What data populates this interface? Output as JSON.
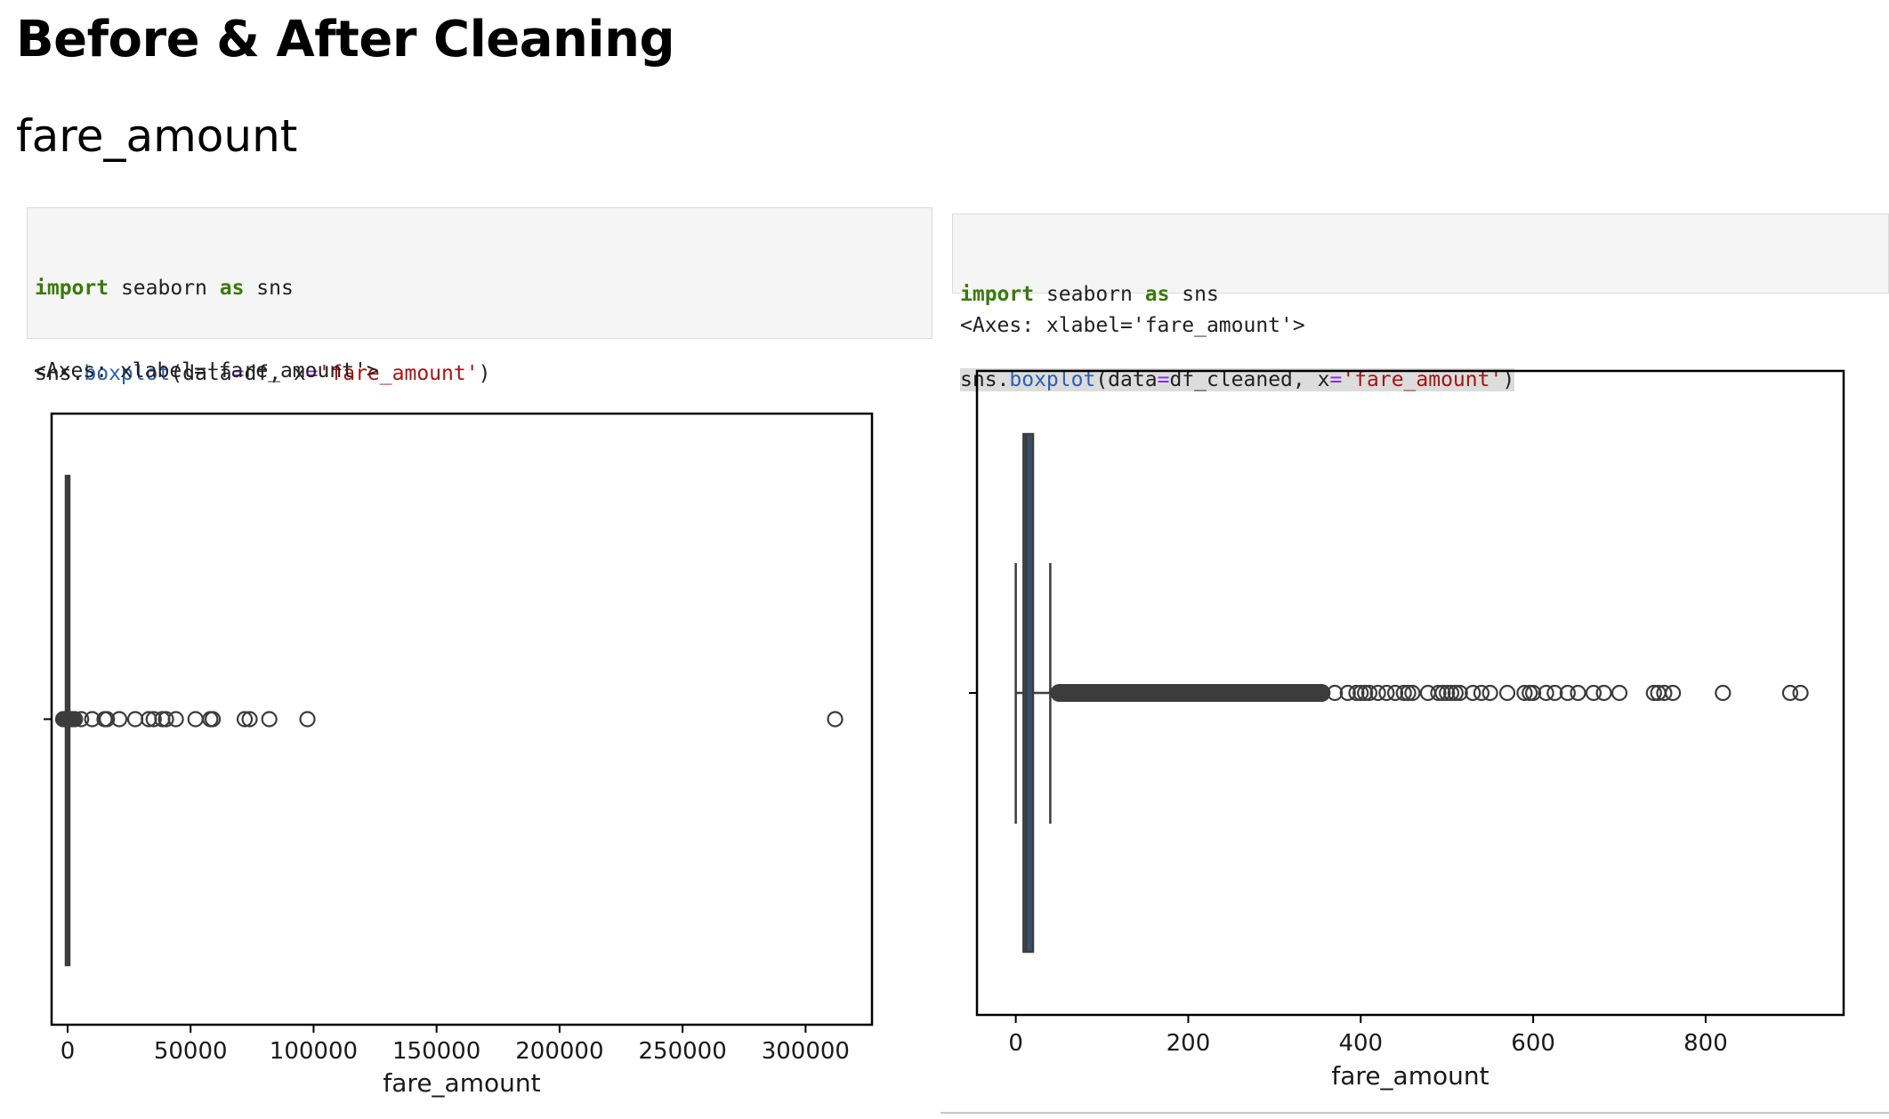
{
  "page": {
    "title": "Before & After Cleaning",
    "subtitle": "fare_amount"
  },
  "cells": [
    {
      "code": {
        "line1": {
          "kw1": "import",
          "mod": " seaborn ",
          "kw2": "as",
          "alias": " sns"
        },
        "line2": {
          "a": "sns.",
          "fn": "boxplot",
          "b": "(data",
          "eq1": "=",
          "c": "df, x",
          "eq2": "=",
          "str": "'fare_amount'",
          "d": ")"
        }
      },
      "output": "<Axes: xlabel='fare_amount'>"
    },
    {
      "code": {
        "line1": {
          "kw1": "import",
          "mod": " seaborn ",
          "kw2": "as",
          "alias": " sns"
        },
        "line2": {
          "a": "sns.",
          "fn": "boxplot",
          "b": "(data",
          "eq1": "=",
          "c": "df_cleaned, x",
          "eq2": "=",
          "str": "'fare_amount'",
          "d": ")"
        }
      },
      "output": "<Axes: xlabel='fare_amount'>"
    }
  ],
  "chart_data": [
    {
      "type": "box",
      "orientation": "horizontal",
      "xlabel": "fare_amount",
      "xlim": [
        -6500,
        327000
      ],
      "xticks": [
        0,
        50000,
        100000,
        150000,
        200000,
        250000,
        300000
      ],
      "xtick_labels": [
        "0",
        "50000",
        "100000",
        "150000",
        "200000",
        "250000",
        "300000"
      ],
      "box": {
        "q1": 6,
        "median": 9,
        "q3": 14,
        "whisker_low": -50,
        "whisker_high": 26
      },
      "outliers": [
        -1800,
        -1200,
        -600,
        -200,
        200,
        500,
        900,
        1500,
        2200,
        3000,
        5500,
        10000,
        15000,
        16000,
        21000,
        27500,
        33000,
        35000,
        38500,
        40000,
        44000,
        52000,
        58000,
        59000,
        72000,
        74000,
        82000,
        97500,
        312000
      ],
      "box_color": "#35506b",
      "edge_color": "#3c3c3c"
    },
    {
      "type": "box",
      "orientation": "horizontal",
      "xlabel": "fare_amount",
      "xlim": [
        -45,
        960
      ],
      "xticks": [
        0,
        200,
        400,
        600,
        800
      ],
      "xtick_labels": [
        "0",
        "200",
        "400",
        "600",
        "800"
      ],
      "box": {
        "q1": 9,
        "median": 12,
        "q3": 20,
        "whisker_low": 0,
        "whisker_high": 40
      },
      "outliers_dense_range": [
        40,
        365
      ],
      "outliers": [
        370,
        385,
        395,
        400,
        405,
        410,
        420,
        430,
        440,
        450,
        455,
        460,
        478,
        490,
        495,
        500,
        505,
        510,
        515,
        530,
        540,
        550,
        570,
        590,
        596,
        600,
        615,
        625,
        640,
        652,
        670,
        682,
        700,
        740,
        745,
        752,
        762,
        820,
        898,
        910
      ],
      "box_color": "#35506b",
      "edge_color": "#3c3c3c"
    }
  ]
}
